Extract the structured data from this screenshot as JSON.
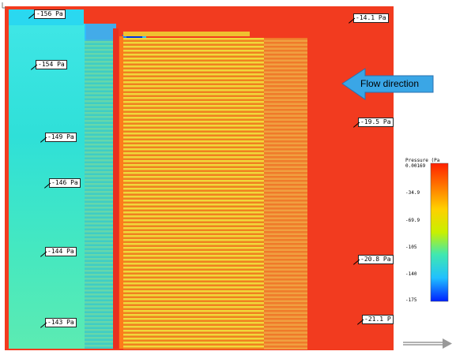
{
  "pressure_labels": [
    {
      "id": "p1",
      "text": "-156 Pa"
    },
    {
      "id": "p2",
      "text": "-154 Pa"
    },
    {
      "id": "p3",
      "text": "-149 Pa"
    },
    {
      "id": "p4",
      "text": "-146 Pa"
    },
    {
      "id": "p5",
      "text": "-144 Pa"
    },
    {
      "id": "p6",
      "text": "-143 Pa"
    },
    {
      "id": "p7",
      "text": "-14.1 Pa"
    },
    {
      "id": "p8",
      "text": "-19.5 Pa"
    },
    {
      "id": "p9",
      "text": "-20.8 Pa"
    },
    {
      "id": "p10",
      "text": "-21.1 P"
    }
  ],
  "flow_direction_label": "Flow direction",
  "legend": {
    "title": "Pressure (Pa",
    "ticks": [
      "0.00169",
      "-34.9",
      "-69.9",
      "-105",
      "-140",
      "-175"
    ],
    "colors_top_to_bottom": [
      "#ff2000",
      "#ff7a00",
      "#ffd000",
      "#c8f000",
      "#40e8b0",
      "#20c0ff",
      "#0020ff"
    ]
  },
  "colors": {
    "red_field": "#f23b1f",
    "cyan_field": "#2fe0d8",
    "yellow_fin": "#f0d83a",
    "orange_fin": "#f06a1e",
    "arrow_blue": "#3aa6e6"
  }
}
